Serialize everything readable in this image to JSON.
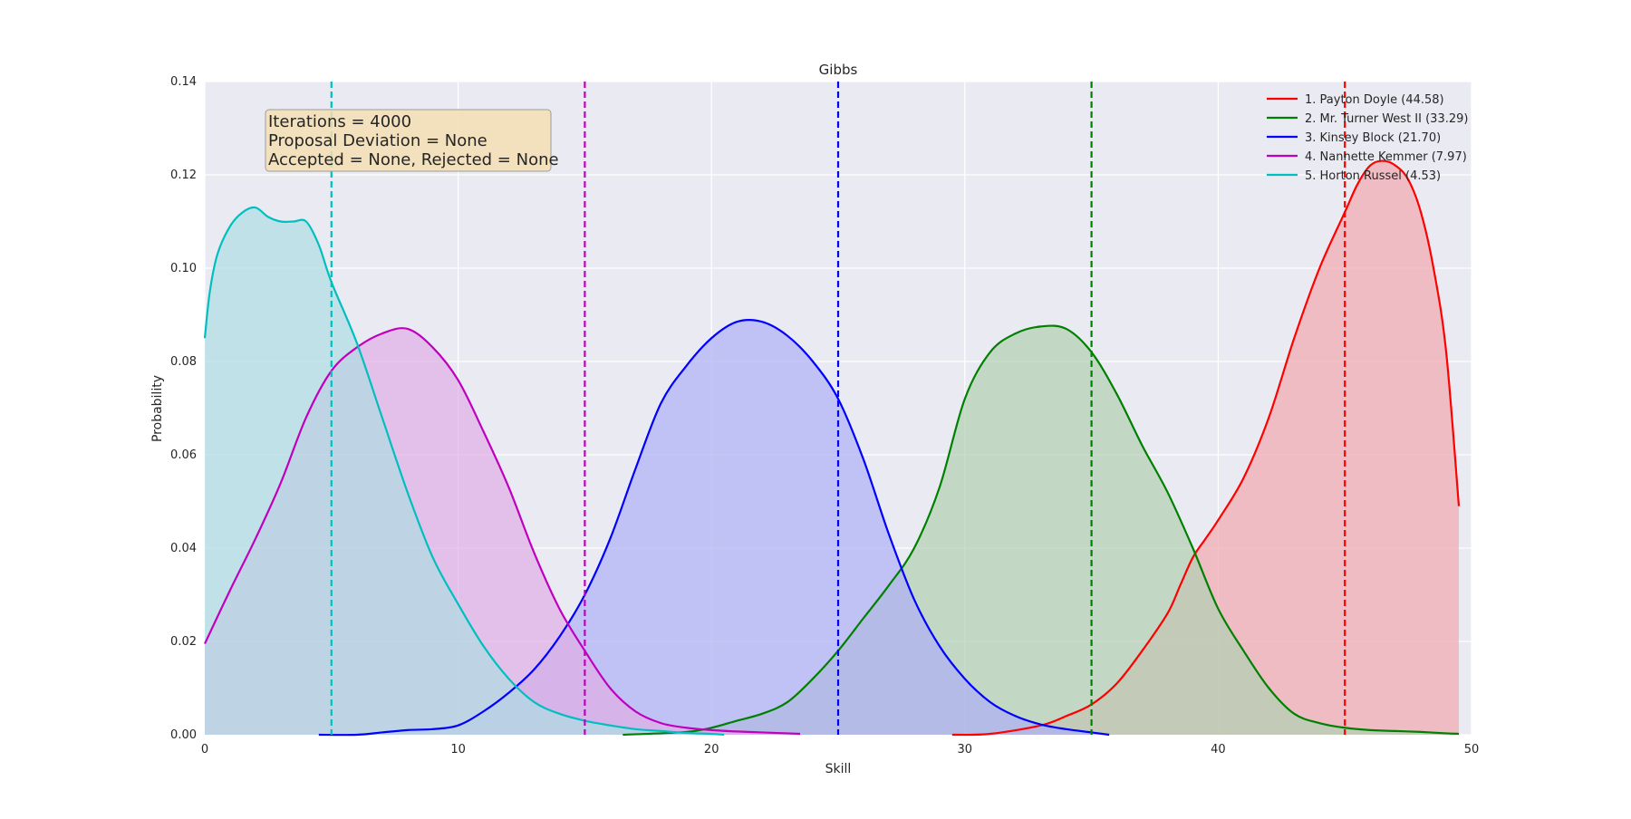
{
  "chart_data": {
    "type": "area",
    "title": "Gibbs",
    "xlabel": "Skill",
    "ylabel": "Probability",
    "xlim": [
      0,
      50
    ],
    "ylim": [
      0,
      0.14
    ],
    "x_ticks": [
      "0",
      "10",
      "20",
      "30",
      "40",
      "50"
    ],
    "y_ticks": [
      "0.00",
      "0.02",
      "0.04",
      "0.06",
      "0.08",
      "0.10",
      "0.12",
      "0.14"
    ],
    "grid": true,
    "legend_position": "top-right",
    "annotation": [
      "Iterations = 4000",
      "Proposal Deviation = None",
      "Accepted = None, Rejected = None"
    ],
    "series": [
      {
        "name": "1. Payton Doyle (44.58)",
        "color": "#ff0000",
        "fill": "#f0a8ae",
        "true_value": 45,
        "x": [
          29.5,
          31,
          33,
          34,
          35,
          36,
          37,
          38,
          38.5,
          39,
          39.5,
          40,
          41,
          42,
          43,
          44,
          45,
          45.5,
          46,
          46.5,
          47,
          47.5,
          48,
          48.5,
          49,
          49.5
        ],
        "values": [
          0.0,
          0.0002,
          0.002,
          0.004,
          0.0065,
          0.011,
          0.018,
          0.026,
          0.032,
          0.038,
          0.042,
          0.046,
          0.055,
          0.068,
          0.085,
          0.1,
          0.112,
          0.118,
          0.122,
          0.123,
          0.122,
          0.119,
          0.112,
          0.1,
          0.082,
          0.049
        ]
      },
      {
        "name": "2. Mr. Turner West II (33.29)",
        "color": "#008000",
        "fill": "#b0d0b2",
        "true_value": 35,
        "x": [
          16.5,
          19,
          20,
          21,
          22,
          23,
          24,
          25,
          26,
          27,
          28,
          29,
          30,
          31,
          32,
          33,
          34,
          35,
          36,
          37,
          38,
          39,
          40,
          41,
          42,
          43,
          44,
          45,
          46,
          47,
          48,
          49,
          49.5
        ],
        "values": [
          0.0,
          0.0006,
          0.0015,
          0.003,
          0.0045,
          0.007,
          0.012,
          0.018,
          0.025,
          0.032,
          0.04,
          0.053,
          0.072,
          0.082,
          0.086,
          0.0875,
          0.087,
          0.082,
          0.073,
          0.062,
          0.052,
          0.04,
          0.027,
          0.018,
          0.01,
          0.0045,
          0.0025,
          0.0015,
          0.001,
          0.0008,
          0.0006,
          0.0003,
          0.0002
        ]
      },
      {
        "name": "3. Kinsey Block (21.70)",
        "color": "#0000ff",
        "fill": "#aeaff5",
        "true_value": 25,
        "x": [
          4.5,
          6,
          7,
          8,
          9,
          10,
          11,
          12,
          13,
          14,
          15,
          16,
          17,
          18,
          19,
          20,
          21,
          22,
          23,
          24,
          25,
          26,
          27,
          28,
          29,
          30,
          31,
          32,
          33,
          34,
          35,
          35.7
        ],
        "values": [
          0.0,
          0.0,
          0.0005,
          0.001,
          0.0012,
          0.002,
          0.005,
          0.009,
          0.014,
          0.021,
          0.03,
          0.042,
          0.057,
          0.071,
          0.079,
          0.085,
          0.0885,
          0.0885,
          0.0855,
          0.08,
          0.072,
          0.059,
          0.043,
          0.029,
          0.019,
          0.012,
          0.007,
          0.004,
          0.0022,
          0.0012,
          0.0005,
          0.0
        ]
      },
      {
        "name": "4. Nannette Kemmer (7.97)",
        "color": "#bf00bf",
        "fill": "#dfaee5",
        "true_value": 15,
        "x": [
          0,
          1,
          2,
          3,
          4,
          5,
          6,
          7,
          8,
          9,
          10,
          11,
          12,
          13,
          14,
          15,
          16,
          17,
          18,
          19,
          20,
          21,
          22,
          23,
          23.5
        ],
        "values": [
          0.0195,
          0.031,
          0.042,
          0.054,
          0.068,
          0.078,
          0.083,
          0.086,
          0.087,
          0.083,
          0.076,
          0.065,
          0.053,
          0.039,
          0.027,
          0.018,
          0.01,
          0.005,
          0.0025,
          0.0015,
          0.001,
          0.0007,
          0.0005,
          0.0003,
          0.0002
        ]
      },
      {
        "name": "5. Horton Russel (4.53)",
        "color": "#00bfbf",
        "fill": "#aedde2",
        "true_value": 5,
        "x": [
          0,
          0.2,
          0.5,
          1,
          1.5,
          2,
          2.5,
          3,
          3.5,
          4,
          4.5,
          5,
          6,
          7,
          8,
          9,
          10,
          11,
          12,
          13,
          14,
          15,
          16,
          17,
          18,
          19,
          20,
          20.5
        ],
        "values": [
          0.085,
          0.095,
          0.103,
          0.109,
          0.112,
          0.113,
          0.111,
          0.11,
          0.11,
          0.11,
          0.105,
          0.097,
          0.084,
          0.068,
          0.052,
          0.038,
          0.028,
          0.019,
          0.012,
          0.007,
          0.0045,
          0.003,
          0.002,
          0.0012,
          0.0008,
          0.0004,
          0.0002,
          0.0
        ]
      }
    ]
  }
}
